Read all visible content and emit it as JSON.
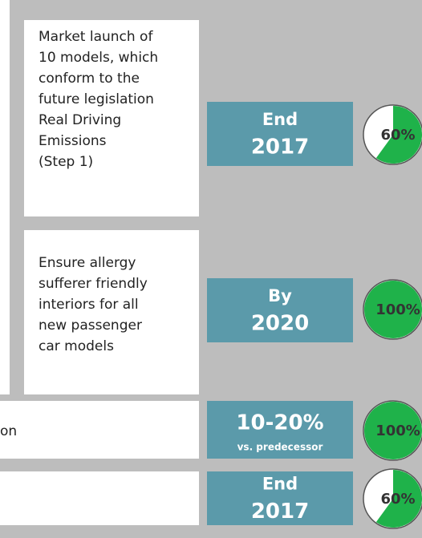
{
  "rows": [
    {
      "goal_lines": [
        "Market launch of",
        "10 models, which",
        "conform to the",
        "future legislation",
        "Real Driving",
        "Emissions",
        "(Step 1)"
      ],
      "deadline_lines": [
        "End",
        "2017"
      ],
      "progress": 60,
      "progress_label": "60%"
    },
    {
      "goal_lines": [
        "Ensure allergy",
        "sufferer friendly",
        "interiors for all",
        "new passenger",
        "car models"
      ],
      "deadline_lines": [
        "By",
        "2020"
      ],
      "progress": 100,
      "progress_label": "100%"
    },
    {
      "goal_lines": [
        "on"
      ],
      "deadline_lines": [
        "10-20%",
        "vs. predecessor"
      ],
      "progress": 100,
      "progress_label": "100%"
    },
    {
      "goal_lines": [],
      "deadline_lines": [
        "End",
        "2017"
      ],
      "progress": 60,
      "progress_label": "60%"
    }
  ]
}
